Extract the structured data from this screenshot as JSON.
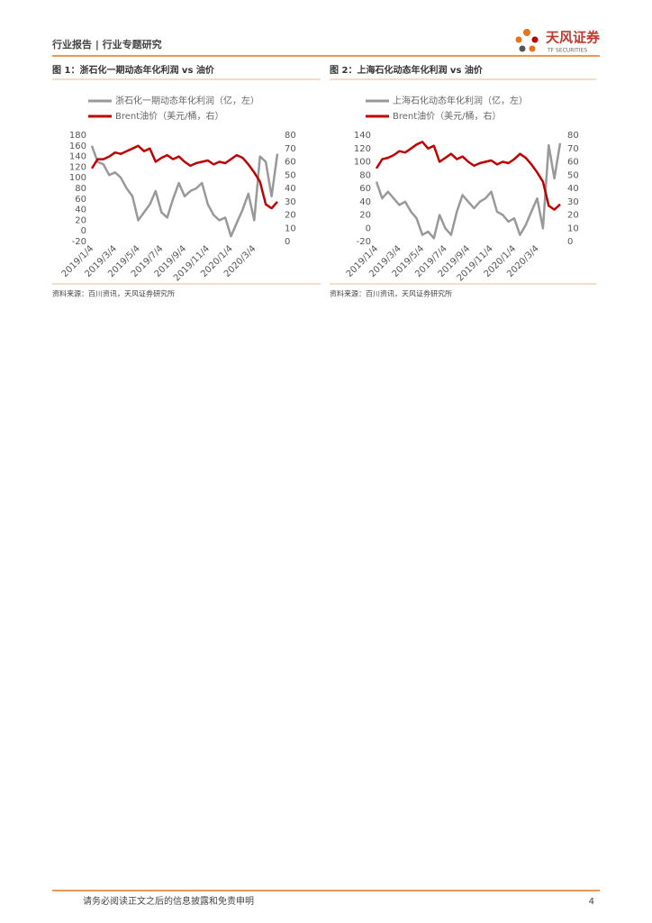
{
  "header": {
    "title": "行业报告 | 行业专题研究",
    "logo": "天风证券",
    "logo_sub": "TF SECURITIES"
  },
  "chart_data": [
    {
      "type": "line",
      "title": "图 1：浙石化一期动态年化利润 vs 油价",
      "source": "资料来源：百川资讯，天风证券研究所",
      "categories": [
        "2019/1/4",
        null,
        null,
        null,
        "2019/3/4",
        null,
        null,
        null,
        "2019/5/4",
        null,
        null,
        null,
        "2019/7/4",
        null,
        null,
        null,
        "2019/9/4",
        null,
        null,
        null,
        "2019/11/4",
        null,
        null,
        null,
        "2020/1/4",
        null,
        null,
        null,
        "2020/3/4",
        null,
        null,
        null,
        null
      ],
      "ylim": [
        -20,
        180
      ],
      "yticks": [
        -20,
        0,
        20,
        40,
        60,
        80,
        100,
        120,
        140,
        160,
        180
      ],
      "y2lim": [
        0,
        80
      ],
      "y2ticks": [
        0,
        10,
        20,
        30,
        40,
        50,
        60,
        70,
        80
      ],
      "legend": "top",
      "series": [
        {
          "name": "浙石化一期动态年化利润（亿，左）",
          "color": "#999999",
          "values": [
            160,
            130,
            125,
            105,
            110,
            100,
            80,
            65,
            20,
            35,
            50,
            75,
            35,
            25,
            60,
            90,
            65,
            75,
            80,
            90,
            50,
            30,
            20,
            25,
            -10,
            15,
            40,
            70,
            20,
            140,
            130,
            65,
            145
          ]
        },
        {
          "name": "Brent油价（美元/桶，右）",
          "color": "#c00000",
          "axis": "y2",
          "values": [
            55,
            62,
            62,
            64,
            67,
            66,
            68,
            70,
            72,
            68,
            70,
            60,
            63,
            65,
            62,
            64,
            60,
            57,
            59,
            60,
            61,
            58,
            60,
            59,
            62,
            65,
            63,
            58,
            52,
            45,
            28,
            25,
            30
          ]
        }
      ]
    },
    {
      "type": "line",
      "title": "图 2：上海石化动态年化利润 vs 油价",
      "source": "资料来源：百川资讯，天风证券研究所",
      "categories": [
        "2019/1/4",
        null,
        null,
        null,
        "2019/3/4",
        null,
        null,
        null,
        "2019/5/4",
        null,
        null,
        null,
        "2019/7/4",
        null,
        null,
        null,
        "2019/9/4",
        null,
        null,
        null,
        "2019/11/4",
        null,
        null,
        null,
        "2020/1/4",
        null,
        null,
        null,
        "2020/3/4",
        null,
        null,
        null,
        null
      ],
      "ylim": [
        -20,
        140
      ],
      "yticks": [
        -20,
        0,
        20,
        40,
        60,
        80,
        100,
        120,
        140
      ],
      "y2lim": [
        0,
        80
      ],
      "y2ticks": [
        0,
        10,
        20,
        30,
        40,
        50,
        60,
        70,
        80
      ],
      "legend": "top",
      "series": [
        {
          "name": "上海石化动态年化利润（亿，左）",
          "color": "#999999",
          "values": [
            70,
            45,
            55,
            45,
            35,
            40,
            25,
            15,
            -10,
            -5,
            -15,
            20,
            0,
            -10,
            25,
            50,
            40,
            30,
            40,
            45,
            55,
            25,
            20,
            10,
            15,
            -10,
            5,
            25,
            45,
            0,
            125,
            75,
            128
          ]
        },
        {
          "name": "Brent油价（美元/桶，右）",
          "color": "#c00000",
          "axis": "y2",
          "values": [
            55,
            62,
            63,
            65,
            68,
            67,
            70,
            73,
            75,
            70,
            72,
            60,
            63,
            66,
            62,
            64,
            60,
            57,
            59,
            60,
            61,
            58,
            60,
            59,
            62,
            66,
            63,
            58,
            52,
            45,
            27,
            24,
            28
          ]
        }
      ]
    }
  ],
  "footer": {
    "disclaimer": "请务必阅读正文之后的信息披露和免责申明",
    "page": "4"
  }
}
